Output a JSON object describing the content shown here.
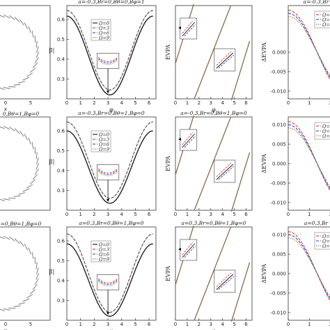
{
  "chart_data": [
    {
      "type": "scatter",
      "title": "",
      "xlabel": "x",
      "ylabel": "",
      "xticks": [
        "0",
        "5"
      ],
      "yticks": []
    },
    {
      "type": "scatter",
      "title": "0,Bθ=1,Bφ=0",
      "xlabel": "",
      "ylabel": "",
      "xticks": [],
      "yticks": []
    },
    {
      "type": "scatter",
      "title": "=0,Bθ=1,Bφ=0",
      "xlabel": "x",
      "ylabel": "",
      "xticks": [
        "0",
        "5"
      ],
      "yticks": []
    },
    {
      "type": "line",
      "title": "a=-0.3,Br=0,Bθ=0,Bφ=1",
      "xlabel": "φ",
      "ylabel": "|I|",
      "xlim": [
        0,
        6.5
      ],
      "ylim": [
        0.2,
        0.67
      ],
      "xticks": [
        "0",
        "1",
        "2",
        "3",
        "4",
        "5",
        "6"
      ],
      "yticks": [
        "0.3",
        "0.4",
        "0.5",
        "0.6"
      ],
      "series": [
        {
          "name": "Ω=0",
          "values": [
            0.617,
            0.22
          ]
        },
        {
          "name": "Ω=3",
          "values": [
            0.645,
            0.245
          ]
        },
        {
          "name": "Ω=6",
          "values": [
            0.645,
            0.245
          ]
        },
        {
          "name": "Ω=9",
          "values": [
            0.645,
            0.245
          ]
        }
      ]
    },
    {
      "type": "line",
      "title": "a=-0.3,Br=0,Bθ=1,Bφ=0",
      "xlabel": "",
      "ylabel": "|I|",
      "xlim": [
        0,
        6.5
      ],
      "ylim": [
        0.2,
        0.67
      ],
      "xticks": [
        "0",
        "1",
        "2",
        "3",
        "4",
        "5",
        "6"
      ],
      "yticks": [
        "0.3",
        "0.4",
        "0.5",
        "0.6"
      ],
      "series": [
        {
          "name": "Ω=0",
          "values": [
            0.6,
            0.235
          ]
        },
        {
          "name": "Ω=3",
          "values": [
            0.645,
            0.26
          ]
        },
        {
          "name": "Ω=6",
          "values": [
            0.645,
            0.26
          ]
        },
        {
          "name": "Ω=9",
          "values": [
            0.645,
            0.26
          ]
        }
      ]
    },
    {
      "type": "line",
      "title": "a=0.3,Br=0,Bθ=1,Bφ=0",
      "xlabel": "φ",
      "ylabel": "|I|",
      "xlim": [
        0,
        6.5
      ],
      "ylim": [
        0.2,
        0.67
      ],
      "xticks": [
        "0",
        "1",
        "2",
        "3",
        "4",
        "5",
        "6"
      ],
      "yticks": [
        "0.3",
        "0.4",
        "0.5",
        "0.6"
      ],
      "series": [
        {
          "name": "Ω=0",
          "values": [
            0.585,
            0.22
          ]
        },
        {
          "name": "Ω=3",
          "values": [
            0.635,
            0.24
          ]
        },
        {
          "name": "Ω=6",
          "values": [
            0.635,
            0.24
          ]
        },
        {
          "name": "Ω=9",
          "values": [
            0.635,
            0.24
          ]
        }
      ]
    },
    {
      "type": "line",
      "title": "",
      "xlabel": "φ",
      "ylabel": "EVPA",
      "xlim": [
        0,
        6.5
      ],
      "xticks": [
        "0",
        "1",
        "2",
        "3",
        "4",
        "5",
        "6"
      ],
      "yticks": [],
      "series": [
        {
          "name": "",
          "values": []
        }
      ]
    },
    {
      "type": "line",
      "title": "a=-0.3,Br=0,Bθ=1,Bφ=0",
      "xlabel": "",
      "ylabel": "EVPA",
      "xlim": [
        0,
        6.5
      ],
      "xticks": [
        "0",
        "1",
        "2",
        "3",
        "4",
        "5",
        "6"
      ],
      "yticks": [],
      "series": [
        {
          "name": "",
          "values": []
        }
      ]
    },
    {
      "type": "line",
      "title": "a=0.3,Br=0,Bθ=1,Bφ=0",
      "xlabel": "φ",
      "ylabel": "EVPA",
      "xlim": [
        0,
        6.5
      ],
      "xticks": [
        "0",
        "1",
        "2",
        "3",
        "4",
        "5",
        "6"
      ],
      "yticks": [],
      "series": [
        {
          "name": "",
          "values": []
        }
      ]
    },
    {
      "type": "line",
      "title": "a=-0.3,Br",
      "xlabel": "",
      "ylabel": "ΔEVPA",
      "xlim": [
        0,
        2.5
      ],
      "ylim": [
        -0.012,
        0.012
      ],
      "xticks": [
        "0",
        "1",
        "2"
      ],
      "yticks": [
        "0.000",
        "-0.005",
        "-0.010"
      ],
      "series": [
        {
          "name": "Ω=3"
        },
        {
          "name": "Ω=6"
        },
        {
          "name": "Ω=9"
        }
      ]
    },
    {
      "type": "line",
      "title": "",
      "xlabel": "",
      "ylabel": "ΔEVPA",
      "xlim": [
        0,
        2.5
      ],
      "ylim": [
        -0.012,
        0.012
      ],
      "xticks": [
        "0",
        "1",
        "2"
      ],
      "yticks": [
        "0.010",
        "0.005",
        "0.000",
        "-0.005",
        "-0.010"
      ],
      "series": [
        {
          "name": "Ω=3"
        },
        {
          "name": "Ω=6"
        },
        {
          "name": "Ω=9"
        }
      ]
    },
    {
      "type": "line",
      "title": "a=0.3,Br",
      "xlabel": "",
      "ylabel": "ΔEVPA",
      "xlim": [
        0,
        2.5
      ],
      "ylim": [
        -0.012,
        0.012
      ],
      "xticks": [
        "0",
        "1",
        "2"
      ],
      "yticks": [
        "0.010",
        "0.005",
        "0.000",
        "-0.005",
        "-0.010"
      ],
      "series": [
        {
          "name": "Ω=3"
        },
        {
          "name": "Ω=6"
        },
        {
          "name": "Ω=9"
        }
      ]
    }
  ],
  "colors": {
    "omega0": "#111111",
    "omega3": "#d62728",
    "omega6": "#1f3bbf",
    "omega9": "#8b6b2e",
    "evpa": "#8b6b4a",
    "frame": "#333333"
  },
  "legend_main": [
    "Ω=0",
    "Ω=3",
    "Ω=6",
    "Ω=9"
  ],
  "legend_delta": [
    "Ω=3",
    "Ω=6",
    "Ω=9"
  ]
}
